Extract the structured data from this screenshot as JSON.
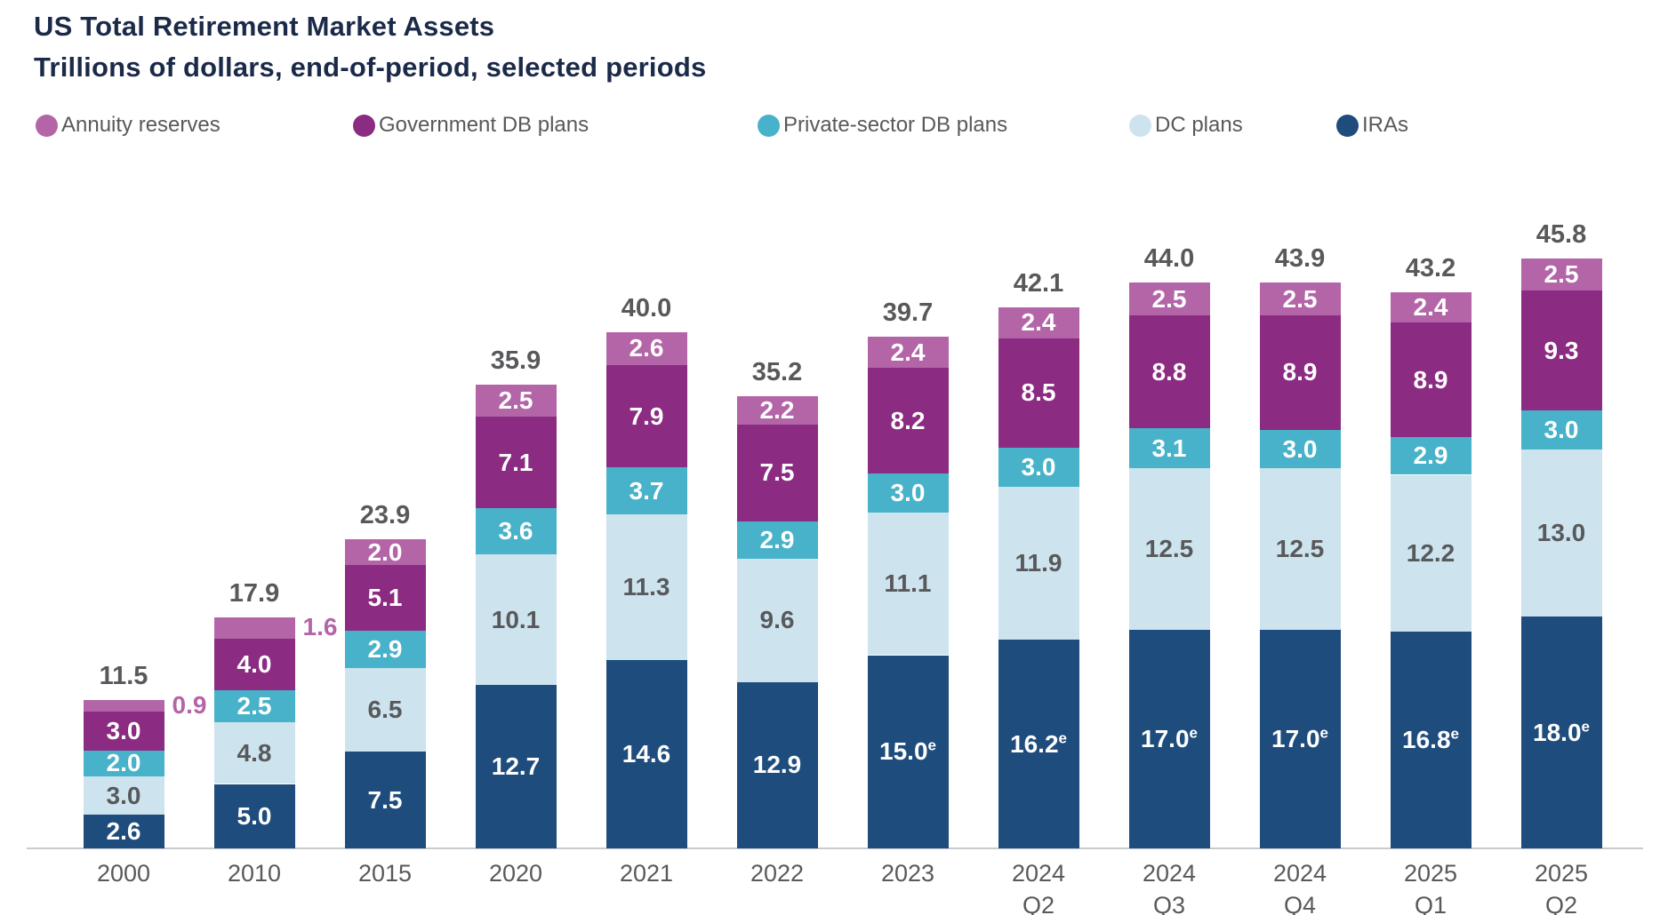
{
  "header": {
    "title": "US Total Retirement Market Assets",
    "subtitle": "Trillions of dollars, end-of-period, selected periods"
  },
  "colors": {
    "title_text": "#1b2a49",
    "gray_text": "#58595b",
    "axis_line": "#c9cacb",
    "annuity": "#b365a8",
    "government_db": "#8b2b82",
    "private_db": "#47b2c9",
    "dc_plans": "#cde4ef",
    "iras": "#1e4c7c"
  },
  "legend": {
    "items": [
      {
        "label": "Annuity reserves",
        "color": "#b365a8"
      },
      {
        "label": "Government DB plans",
        "color": "#8b2b82"
      },
      {
        "label": "Private-sector DB plans",
        "color": "#47b2c9"
      },
      {
        "label": "DC plans",
        "color": "#cde4ef"
      },
      {
        "label": "IRAs",
        "color": "#1e4c7c"
      }
    ]
  },
  "chart_data": {
    "type": "bar",
    "subtype": "stacked",
    "title": "US Total Retirement Market Assets",
    "unit": "trillions of US dollars",
    "value_axis": {
      "visible": false,
      "range": [
        0,
        46
      ]
    },
    "grid": false,
    "legend_position": "top",
    "categories": [
      {
        "line1": "2000"
      },
      {
        "line1": "2010"
      },
      {
        "line1": "2015"
      },
      {
        "line1": "2020"
      },
      {
        "line1": "2021"
      },
      {
        "line1": "2022"
      },
      {
        "line1": "2023"
      },
      {
        "line1": "2024",
        "line2": "Q2"
      },
      {
        "line1": "2024",
        "line2": "Q3"
      },
      {
        "line1": "2024",
        "line2": "Q4"
      },
      {
        "line1": "2025",
        "line2": "Q1"
      },
      {
        "line1": "2025",
        "line2": "Q2"
      }
    ],
    "totals": [
      "11.5",
      "17.9",
      "23.9",
      "35.9",
      "40.0",
      "35.2",
      "39.7",
      "42.1",
      "44.0",
      "43.9",
      "43.2",
      "45.8"
    ],
    "series": [
      {
        "name": "IRAs",
        "color": "#1e4c7c",
        "label_color": "#ffffff",
        "values": [
          {
            "v": 2.6,
            "label": "2.6"
          },
          {
            "v": 5.0,
            "label": "5.0"
          },
          {
            "v": 7.5,
            "label": "7.5"
          },
          {
            "v": 12.7,
            "label": "12.7"
          },
          {
            "v": 14.6,
            "label": "14.6"
          },
          {
            "v": 12.9,
            "label": "12.9"
          },
          {
            "v": 15.0,
            "label": "15.0",
            "sup": "e"
          },
          {
            "v": 16.2,
            "label": "16.2",
            "sup": "e"
          },
          {
            "v": 17.0,
            "label": "17.0",
            "sup": "e"
          },
          {
            "v": 17.0,
            "label": "17.0",
            "sup": "e"
          },
          {
            "v": 16.8,
            "label": "16.8",
            "sup": "e"
          },
          {
            "v": 18.0,
            "label": "18.0",
            "sup": "e"
          }
        ]
      },
      {
        "name": "DC plans",
        "color": "#cde4ef",
        "label_color": "#58595b",
        "values": [
          {
            "v": 3.0,
            "label": "3.0"
          },
          {
            "v": 4.8,
            "label": "4.8"
          },
          {
            "v": 6.5,
            "label": "6.5"
          },
          {
            "v": 10.1,
            "label": "10.1"
          },
          {
            "v": 11.3,
            "label": "11.3"
          },
          {
            "v": 9.6,
            "label": "9.6"
          },
          {
            "v": 11.1,
            "label": "11.1"
          },
          {
            "v": 11.9,
            "label": "11.9"
          },
          {
            "v": 12.5,
            "label": "12.5"
          },
          {
            "v": 12.5,
            "label": "12.5"
          },
          {
            "v": 12.2,
            "label": "12.2"
          },
          {
            "v": 13.0,
            "label": "13.0"
          }
        ]
      },
      {
        "name": "Private-sector DB plans",
        "color": "#47b2c9",
        "label_color": "#ffffff",
        "values": [
          {
            "v": 2.0,
            "label": "2.0"
          },
          {
            "v": 2.5,
            "label": "2.5"
          },
          {
            "v": 2.9,
            "label": "2.9"
          },
          {
            "v": 3.6,
            "label": "3.6"
          },
          {
            "v": 3.7,
            "label": "3.7"
          },
          {
            "v": 2.9,
            "label": "2.9"
          },
          {
            "v": 3.0,
            "label": "3.0"
          },
          {
            "v": 3.0,
            "label": "3.0"
          },
          {
            "v": 3.1,
            "label": "3.1"
          },
          {
            "v": 3.0,
            "label": "3.0"
          },
          {
            "v": 2.9,
            "label": "2.9"
          },
          {
            "v": 3.0,
            "label": "3.0"
          }
        ]
      },
      {
        "name": "Government DB plans",
        "color": "#8b2b82",
        "label_color": "#ffffff",
        "values": [
          {
            "v": 3.0,
            "label": "3.0"
          },
          {
            "v": 4.0,
            "label": "4.0"
          },
          {
            "v": 5.1,
            "label": "5.1"
          },
          {
            "v": 7.1,
            "label": "7.1"
          },
          {
            "v": 7.9,
            "label": "7.9"
          },
          {
            "v": 7.5,
            "label": "7.5"
          },
          {
            "v": 8.2,
            "label": "8.2"
          },
          {
            "v": 8.5,
            "label": "8.5"
          },
          {
            "v": 8.8,
            "label": "8.8"
          },
          {
            "v": 8.9,
            "label": "8.9"
          },
          {
            "v": 8.9,
            "label": "8.9"
          },
          {
            "v": 9.3,
            "label": "9.3"
          }
        ]
      },
      {
        "name": "Annuity reserves",
        "color": "#b365a8",
        "label_color": "#ffffff",
        "values": [
          {
            "v": 0.9,
            "label": "0.9",
            "outside": true
          },
          {
            "v": 1.6,
            "label": "1.6",
            "outside": true
          },
          {
            "v": 2.0,
            "label": "2.0"
          },
          {
            "v": 2.5,
            "label": "2.5"
          },
          {
            "v": 2.6,
            "label": "2.6"
          },
          {
            "v": 2.2,
            "label": "2.2"
          },
          {
            "v": 2.4,
            "label": "2.4"
          },
          {
            "v": 2.4,
            "label": "2.4"
          },
          {
            "v": 2.5,
            "label": "2.5"
          },
          {
            "v": 2.5,
            "label": "2.5"
          },
          {
            "v": 2.4,
            "label": "2.4"
          },
          {
            "v": 2.5,
            "label": "2.5"
          }
        ]
      }
    ]
  }
}
